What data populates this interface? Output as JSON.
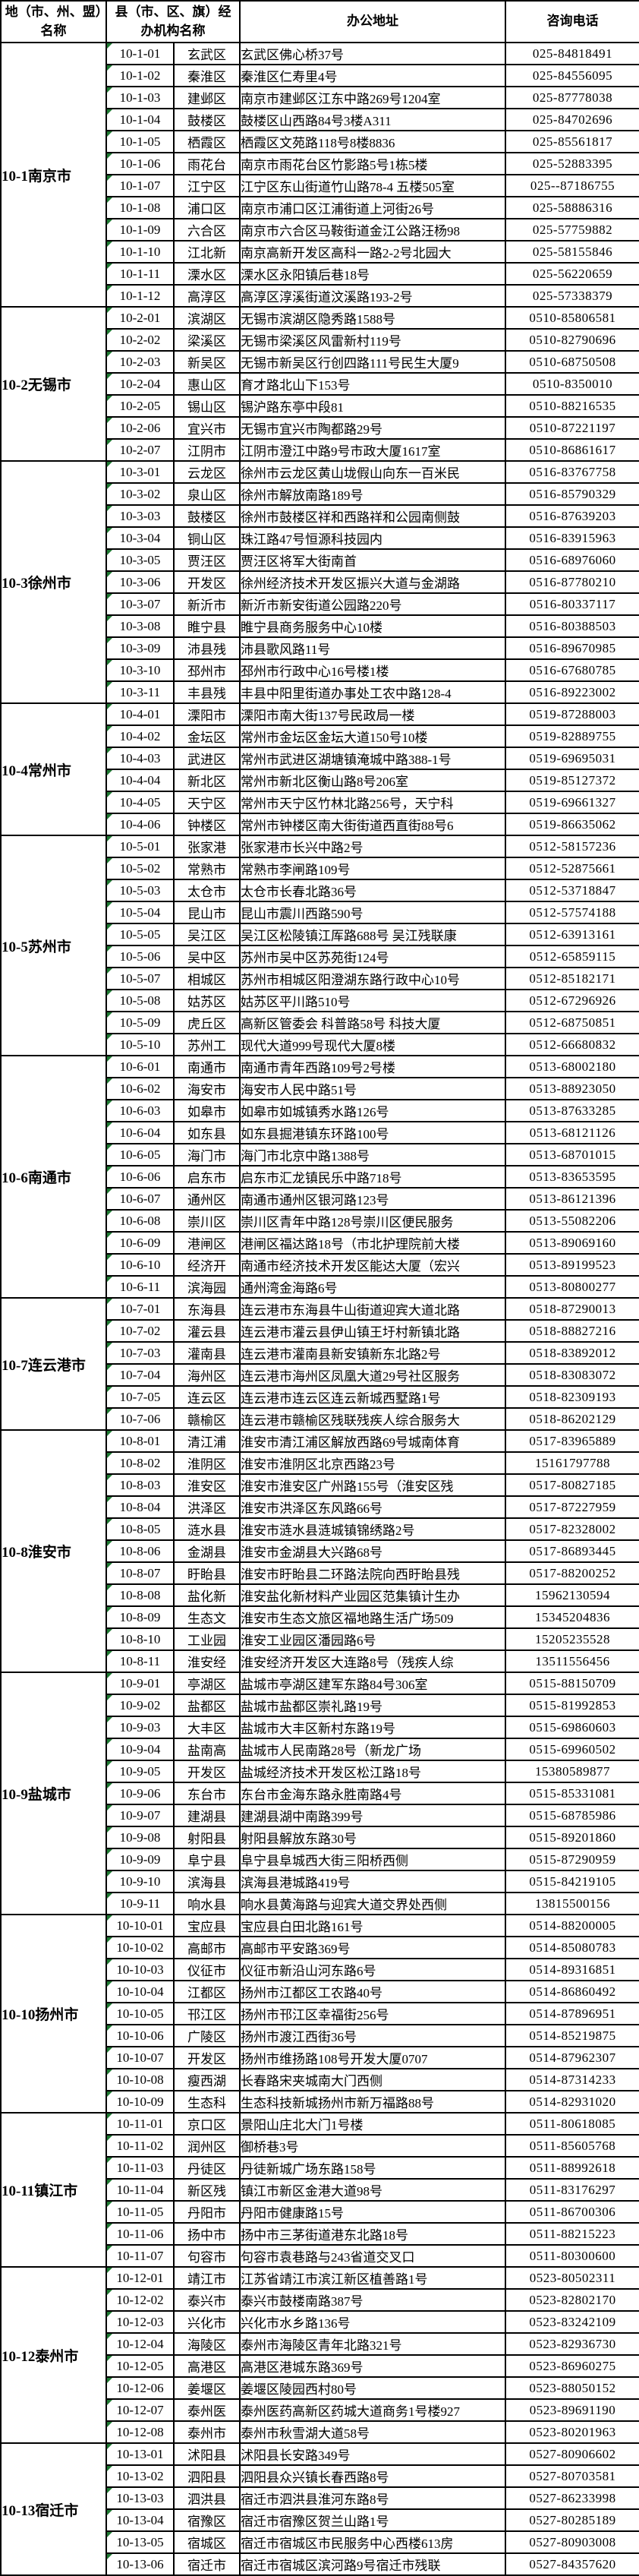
{
  "table": {
    "headers": {
      "region": "地（市、州、盟）名称",
      "agency": "县（市、区、旗）经办机构名称",
      "address": "办公地址",
      "phone": "咨询电话"
    },
    "marker_color": "#1f7a33",
    "border_color": "#000000",
    "groups": [
      {
        "region": "10-1南京市",
        "rows": [
          {
            "code": "10-1-01",
            "name": "玄武区",
            "address": "玄武区佛心桥37号",
            "phone": "025-84818491"
          },
          {
            "code": "10-1-02",
            "name": "秦淮区",
            "address": "秦淮区仁寿里4号",
            "phone": "025-84556095"
          },
          {
            "code": "10-1-03",
            "name": "建邺区",
            "address": "南京市建邺区江东中路269号1204室",
            "phone": "025-87778038"
          },
          {
            "code": "10-1-04",
            "name": "鼓楼区",
            "address": "鼓楼区山西路84号3楼A311",
            "phone": "025-84702696"
          },
          {
            "code": "10-1-05",
            "name": "栖霞区",
            "address": "栖霞区文苑路118号8楼8836",
            "phone": "025-85561817"
          },
          {
            "code": "10-1-06",
            "name": "雨花台",
            "address": "南京市雨花台区竹影路5号1栋5楼",
            "phone": "025-52883395"
          },
          {
            "code": "10-1-07",
            "name": "江宁区",
            "address": "江宁区东山街道竹山路78-4 五楼505室",
            "phone": "025--87186755"
          },
          {
            "code": "10-1-08",
            "name": "浦口区",
            "address": "南京市浦口区江浦街道上河街26号",
            "phone": "025-58886316"
          },
          {
            "code": "10-1-09",
            "name": "六合区",
            "address": "南京市六合区马鞍街道金江公路汪杨98",
            "phone": "025-57759882"
          },
          {
            "code": "10-1-10",
            "name": "江北新",
            "address": "南京高新开发区高科一路2-2号北园大",
            "phone": "025-58155846"
          },
          {
            "code": "10-1-11",
            "name": "溧水区",
            "address": "溧水区永阳镇后巷18号",
            "phone": "025-56220659"
          },
          {
            "code": "10-1-12",
            "name": "高淳区",
            "address": "高淳区淳溪街道汶溪路193-2号",
            "phone": "025-57338379"
          }
        ]
      },
      {
        "region": "10-2无锡市",
        "rows": [
          {
            "code": "10-2-01",
            "name": "滨湖区",
            "address": "无锡市滨湖区隐秀路1588号",
            "phone": "0510-85806581"
          },
          {
            "code": "10-2-02",
            "name": "梁溪区",
            "address": "无锡市梁溪区风雷新村119号",
            "phone": "0510-82790696"
          },
          {
            "code": "10-2-03",
            "name": "新吴区",
            "address": "无锡市新吴区行创四路111号民生大厦9",
            "phone": "0510-68750508"
          },
          {
            "code": "10-2-04",
            "name": "惠山区",
            "address": "育才路北山下153号",
            "phone": "0510-8350010"
          },
          {
            "code": "10-2-05",
            "name": "锡山区",
            "address": "锡沪路东亭中段81",
            "phone": "0510-88216535"
          },
          {
            "code": "10-2-06",
            "name": "宜兴市",
            "address": "无锡市宜兴市陶都路29号",
            "phone": "0510-87221197"
          },
          {
            "code": "10-2-07",
            "name": "江阴市",
            "address": "江阴市澄江中路9号市政大厦1617室",
            "phone": "0510-86861617"
          }
        ]
      },
      {
        "region": "10-3徐州市",
        "rows": [
          {
            "code": "10-3-01",
            "name": "云龙区",
            "address": "徐州市云龙区黄山垅假山向东一百米民",
            "phone": "0516-83767758"
          },
          {
            "code": "10-3-02",
            "name": "泉山区",
            "address": "徐州市解放南路189号",
            "phone": "0516-85790329"
          },
          {
            "code": "10-3-03",
            "name": "鼓楼区",
            "address": "徐州市鼓楼区祥和西路祥和公园南侧鼓",
            "phone": "0516-87639203"
          },
          {
            "code": "10-3-04",
            "name": "铜山区",
            "address": "珠江路47号恒源科技园内",
            "phone": "0516-83915963"
          },
          {
            "code": "10-3-05",
            "name": "贾汪区",
            "address": "贾汪区将军大街南首",
            "phone": "0516-68976060"
          },
          {
            "code": "10-3-06",
            "name": "开发区",
            "address": "徐州经济技术开发区振兴大道与金湖路",
            "phone": "0516-87780210"
          },
          {
            "code": "10-3-07",
            "name": "新沂市",
            "address": "新沂市新安街道公园路220号",
            "phone": "0516-80337117"
          },
          {
            "code": "10-3-08",
            "name": "睢宁县",
            "address": "睢宁县商务服务中心10楼",
            "phone": "0516-80388503"
          },
          {
            "code": "10-3-09",
            "name": "沛县残",
            "address": "沛县歌风路11号",
            "phone": "0516-89670985"
          },
          {
            "code": "10-3-10",
            "name": "邳州市",
            "address": "邳州市行政中心16号楼1楼",
            "phone": "0516-67680785"
          },
          {
            "code": "10-3-11",
            "name": "丰县残",
            "address": "丰县中阳里街道办事处工农中路128-4",
            "phone": "0516-89223002"
          }
        ]
      },
      {
        "region": "10-4常州市",
        "rows": [
          {
            "code": "10-4-01",
            "name": "溧阳市",
            "address": "溧阳市南大街137号民政局一楼",
            "phone": "0519-87288003"
          },
          {
            "code": "10-4-02",
            "name": "金坛区",
            "address": "常州市金坛区金坛大道150号10楼",
            "phone": "0519-82889755"
          },
          {
            "code": "10-4-03",
            "name": "武进区",
            "address": "常州市武进区湖塘镇淹城中路388-1号",
            "phone": "0519-69695031"
          },
          {
            "code": "10-4-04",
            "name": "新北区",
            "address": "常州市新北区衡山路8号206室",
            "phone": "0519-85127372"
          },
          {
            "code": "10-4-05",
            "name": "天宁区",
            "address": "常州市天宁区竹林北路256号，天宁科",
            "phone": "0519-69661327"
          },
          {
            "code": "10-4-06",
            "name": "钟楼区",
            "address": "常州市钟楼区南大街街道西直街88号6",
            "phone": "0519-86635062"
          }
        ]
      },
      {
        "region": "10-5苏州市",
        "rows": [
          {
            "code": "10-5-01",
            "name": "张家港",
            "address": "张家港市长兴中路2号",
            "phone": "0512-58157236"
          },
          {
            "code": "10-5-02",
            "name": "常熟市",
            "address": "常熟市李闸路109号",
            "phone": "0512-52875661"
          },
          {
            "code": "10-5-03",
            "name": "太仓市",
            "address": "太仓市长春北路36号",
            "phone": "0512-53718847"
          },
          {
            "code": "10-5-04",
            "name": "昆山市",
            "address": "昆山市震川西路590号",
            "phone": "0512-57574188"
          },
          {
            "code": "10-5-05",
            "name": "吴江区",
            "address": "吴江区松陵镇江厍路688号 吴江残联康",
            "phone": "0512-63913161"
          },
          {
            "code": "10-5-06",
            "name": "吴中区",
            "address": "苏州市吴中区苏苑街124号",
            "phone": "0512-65859115"
          },
          {
            "code": "10-5-07",
            "name": "相城区",
            "address": "苏州市相城区阳澄湖东路行政中心10号",
            "phone": "0512-85182171"
          },
          {
            "code": "10-5-08",
            "name": "姑苏区",
            "address": "姑苏区平川路510号",
            "phone": "0512-67296926"
          },
          {
            "code": "10-5-09",
            "name": "虎丘区",
            "address": "高新区管委会 科普路58号 科技大厦",
            "phone": "0512-68750851"
          },
          {
            "code": "10-5-10",
            "name": "苏州工",
            "address": "现代大道999号现代大厦8楼",
            "phone": "0512-66680832"
          }
        ]
      },
      {
        "region": "10-6南通市",
        "rows": [
          {
            "code": "10-6-01",
            "name": "南通市",
            "address": "南通市青年西路109号2号楼",
            "phone": "0513-68002180"
          },
          {
            "code": "10-6-02",
            "name": "海安市",
            "address": "海安市人民中路51号",
            "phone": "0513-88923050"
          },
          {
            "code": "10-6-03",
            "name": "如皋市",
            "address": "如皋市如城镇秀水路126号",
            "phone": "0513-87633285"
          },
          {
            "code": "10-6-04",
            "name": "如东县",
            "address": "如东县掘港镇东环路100号",
            "phone": "0513-68121126"
          },
          {
            "code": "10-6-05",
            "name": "海门市",
            "address": "海门市北京中路1388号",
            "phone": "0513-68701015"
          },
          {
            "code": "10-6-06",
            "name": "启东市",
            "address": "启东市汇龙镇民乐中路718号",
            "phone": "0513-83653595"
          },
          {
            "code": "10-6-07",
            "name": "通州区",
            "address": "南通市通州区银河路123号",
            "phone": "0513-86121396"
          },
          {
            "code": "10-6-08",
            "name": "崇川区",
            "address": "崇川区青年中路128号崇川区便民服务",
            "phone": "0513-55082206"
          },
          {
            "code": "10-6-09",
            "name": "港闸区",
            "address": "港闸区福达路18号（市北护理院前大楼",
            "phone": "0513-89069160"
          },
          {
            "code": "10-6-10",
            "name": "经济开",
            "address": "南通市经济技术开发区能达大厦（宏兴",
            "phone": "0513-89199523"
          },
          {
            "code": "10-6-11",
            "name": "滨海园",
            "address": "通州湾金海路6号",
            "phone": "0513-80800277"
          }
        ]
      },
      {
        "region": "10-7连云港市",
        "rows": [
          {
            "code": "10-7-01",
            "name": "东海县",
            "address": "连云港市东海县牛山街道迎宾大道北路",
            "phone": "0518-87290013"
          },
          {
            "code": "10-7-02",
            "name": "灌云县",
            "address": "连云港市灌云县伊山镇王圩村新镇北路",
            "phone": "0518-88827216"
          },
          {
            "code": "10-7-03",
            "name": "灌南县",
            "address": "连云港市灌南县新安镇新东北路2号",
            "phone": "0518-83892012"
          },
          {
            "code": "10-7-04",
            "name": "海州区",
            "address": "连云港市海州区凤凰大道29号社区服务",
            "phone": "0518-83083072"
          },
          {
            "code": "10-7-05",
            "name": "连云区",
            "address": "连云港市连云区连云新城西墅路1号",
            "phone": "0518-82309193"
          },
          {
            "code": "10-7-06",
            "name": "赣榆区",
            "address": "连云港市赣榆区残联残疾人综合服务大",
            "phone": "0518-86202129"
          }
        ]
      },
      {
        "region": "10-8淮安市",
        "rows": [
          {
            "code": "10-8-01",
            "name": "清江浦",
            "address": "淮安市清江浦区解放西路69号城南体育",
            "phone": "0517-83965889"
          },
          {
            "code": "10-8-02",
            "name": "淮阴区",
            "address": "淮安市淮阴区北京西路23号",
            "phone": "15161797788"
          },
          {
            "code": "10-8-03",
            "name": "淮安区",
            "address": "淮安市淮安区广州路155号（淮安区残",
            "phone": "0517-80827185"
          },
          {
            "code": "10-8-04",
            "name": "洪泽区",
            "address": "淮安市洪泽区东风路66号",
            "phone": "0517-87227959"
          },
          {
            "code": "10-8-05",
            "name": "涟水县",
            "address": "淮安市涟水县涟城镇锦绣路2号",
            "phone": "0517-82328002"
          },
          {
            "code": "10-8-06",
            "name": "金湖县",
            "address": "淮安市金湖县大兴路68号",
            "phone": "0517-86893445"
          },
          {
            "code": "10-8-07",
            "name": "盱眙县",
            "address": "淮安市盱眙县二环路法院向西盱眙县残",
            "phone": "0517-88200252"
          },
          {
            "code": "10-8-08",
            "name": "盐化新",
            "address": "淮安盐化新材料产业园区范集镇计生办",
            "phone": "15962130594"
          },
          {
            "code": "10-8-09",
            "name": "生态文",
            "address": "淮安市生态文旅区福地路生活广场509",
            "phone": "15345204836"
          },
          {
            "code": "10-8-10",
            "name": "工业园",
            "address": "淮安工业园区潘园路6号",
            "phone": "15205235528"
          },
          {
            "code": "10-8-11",
            "name": "淮安经",
            "address": "淮安经济开发区大连路8号（残疾人综",
            "phone": "13511556456"
          }
        ]
      },
      {
        "region": "10-9盐城市",
        "rows": [
          {
            "code": "10-9-01",
            "name": "亭湖区",
            "address": "盐城市亭湖区建军东路84号306室",
            "phone": "0515-88150709"
          },
          {
            "code": "10-9-02",
            "name": "盐都区",
            "address": "盐城市盐都区崇礼路19号",
            "phone": "0515-81992853"
          },
          {
            "code": "10-9-03",
            "name": "大丰区",
            "address": "盐城市大丰区新村东路19号",
            "phone": "0515-69860603"
          },
          {
            "code": "10-9-04",
            "name": "盐南高",
            "address": "盐城市人民南路28号（新龙广场",
            "phone": "0515-69960502"
          },
          {
            "code": "10-9-05",
            "name": "开发区",
            "address": "盐城经济技术开发区松江路18号",
            "phone": "15380589877"
          },
          {
            "code": "10-9-06",
            "name": "东台市",
            "address": "东台市金海东路永胜南路4号",
            "phone": "0515-85331081"
          },
          {
            "code": "10-9-07",
            "name": "建湖县",
            "address": "建湖县湖中南路399号",
            "phone": "0515-68785986"
          },
          {
            "code": "10-9-08",
            "name": "射阳县",
            "address": "射阳县解放东路30号",
            "phone": "0515-89201860"
          },
          {
            "code": "10-9-09",
            "name": "阜宁县",
            "address": "阜宁县阜城西大街三阳桥西侧",
            "phone": "0515-87290959"
          },
          {
            "code": "10-9-10",
            "name": "滨海县",
            "address": "滨海县港城路419号",
            "phone": "0515-84219105"
          },
          {
            "code": "10-9-11",
            "name": "响水县",
            "address": "响水县黄海路与迎宾大道交界处西侧",
            "phone": "13815500156"
          }
        ]
      },
      {
        "region": "10-10扬州市",
        "rows": [
          {
            "code": "10-10-01",
            "name": "宝应县",
            "address": "宝应县白田北路161号",
            "phone": "0514-88200005"
          },
          {
            "code": "10-10-02",
            "name": "高邮市",
            "address": "高邮市平安路369号",
            "phone": "0514-85080783"
          },
          {
            "code": "10-10-03",
            "name": "仪征市",
            "address": "仪征市新沿山河东路6号",
            "phone": "0514-89316851"
          },
          {
            "code": "10-10-04",
            "name": "江都区",
            "address": "扬州市江都区工农路40号",
            "phone": "0514-86860492"
          },
          {
            "code": "10-10-05",
            "name": "邗江区",
            "address": "扬州市邗江区幸福街256号",
            "phone": "0514-87896951"
          },
          {
            "code": "10-10-06",
            "name": "广陵区",
            "address": "扬州市渡江西街36号",
            "phone": "0514-85219875"
          },
          {
            "code": "10-10-07",
            "name": "开发区",
            "address": "扬州市维扬路108号开发大厦0707",
            "phone": "0514-87962307"
          },
          {
            "code": "10-10-08",
            "name": "瘦西湖",
            "address": "长春路宋夹城南大门西侧",
            "phone": "0514-87314233"
          },
          {
            "code": "10-10-09",
            "name": "生态科",
            "address": "生态科技新城扬州市新万福路88号",
            "phone": "0514-82931020"
          }
        ]
      },
      {
        "region": "10-11镇江市",
        "rows": [
          {
            "code": "10-11-01",
            "name": "京口区",
            "address": "景阳山庄北大门1号楼",
            "phone": "0511-80618085"
          },
          {
            "code": "10-11-02",
            "name": "润州区",
            "address": "御桥巷3号",
            "phone": "0511-85605768"
          },
          {
            "code": "10-11-03",
            "name": "丹徒区",
            "address": "丹徒新城广场东路158号",
            "phone": "0511-88992618"
          },
          {
            "code": "10-11-04",
            "name": "新区残",
            "address": "镇江市新区金港大道98号",
            "phone": "0511-83176297"
          },
          {
            "code": "10-11-05",
            "name": "丹阳市",
            "address": "丹阳市健康路15号",
            "phone": "0511-86700306"
          },
          {
            "code": "10-11-06",
            "name": "扬中市",
            "address": "扬中市三茅街道港东北路18号",
            "phone": "0511-88215223"
          },
          {
            "code": "10-11-07",
            "name": "句容市",
            "address": "句容市袁巷路与243省道交叉口",
            "phone": "0511-80300600"
          }
        ]
      },
      {
        "region": "10-12泰州市",
        "rows": [
          {
            "code": "10-12-01",
            "name": "靖江市",
            "address": "江苏省靖江市滨江新区植善路1号",
            "phone": "0523-80502311"
          },
          {
            "code": "10-12-02",
            "name": "泰兴市",
            "address": "泰兴市鼓楼南路387号",
            "phone": "0523-82802170"
          },
          {
            "code": "10-12-03",
            "name": "兴化市",
            "address": "兴化市水乡路136号",
            "phone": "0523-83242109"
          },
          {
            "code": "10-12-04",
            "name": "海陵区",
            "address": "泰州市海陵区青年北路321号",
            "phone": "0523-82936730"
          },
          {
            "code": "10-12-05",
            "name": "高港区",
            "address": "高港区港城东路369号",
            "phone": "0523-86960275"
          },
          {
            "code": "10-12-06",
            "name": "姜堰区",
            "address": "姜堰区陵园西村80号",
            "phone": "0523-88050152"
          },
          {
            "code": "10-12-07",
            "name": "泰州医",
            "address": "泰州医药高新区药城大道商务1号楼927",
            "phone": "0523-89691190"
          },
          {
            "code": "10-12-08",
            "name": "泰州市",
            "address": "泰州市秋雪湖大道58号",
            "phone": "0523-80201963"
          }
        ]
      },
      {
        "region": "10-13宿迁市",
        "rows": [
          {
            "code": "10-13-01",
            "name": "沭阳县",
            "address": "沭阳县长安路349号",
            "phone": "0527-80906602"
          },
          {
            "code": "10-13-02",
            "name": "泗阳县",
            "address": "泗阳县众兴镇长春西路8号",
            "phone": "0527-80703581"
          },
          {
            "code": "10-13-03",
            "name": "泗洪县",
            "address": "宿迁市泗洪县淮河东路8号",
            "phone": "0527-86233998"
          },
          {
            "code": "10-13-04",
            "name": "宿豫区",
            "address": "宿迁市宿豫区贺兰山路1号",
            "phone": "0527-80285189"
          },
          {
            "code": "10-13-05",
            "name": "宿城区",
            "address": "宿迁市宿城区市民服务中心西楼613房",
            "phone": "0527-80903008"
          },
          {
            "code": "10-13-06",
            "name": "宿迁市",
            "address": "宿迁市宿城区滨河路9号宿迁市残联",
            "phone": "0527-84357620"
          }
        ]
      }
    ]
  }
}
